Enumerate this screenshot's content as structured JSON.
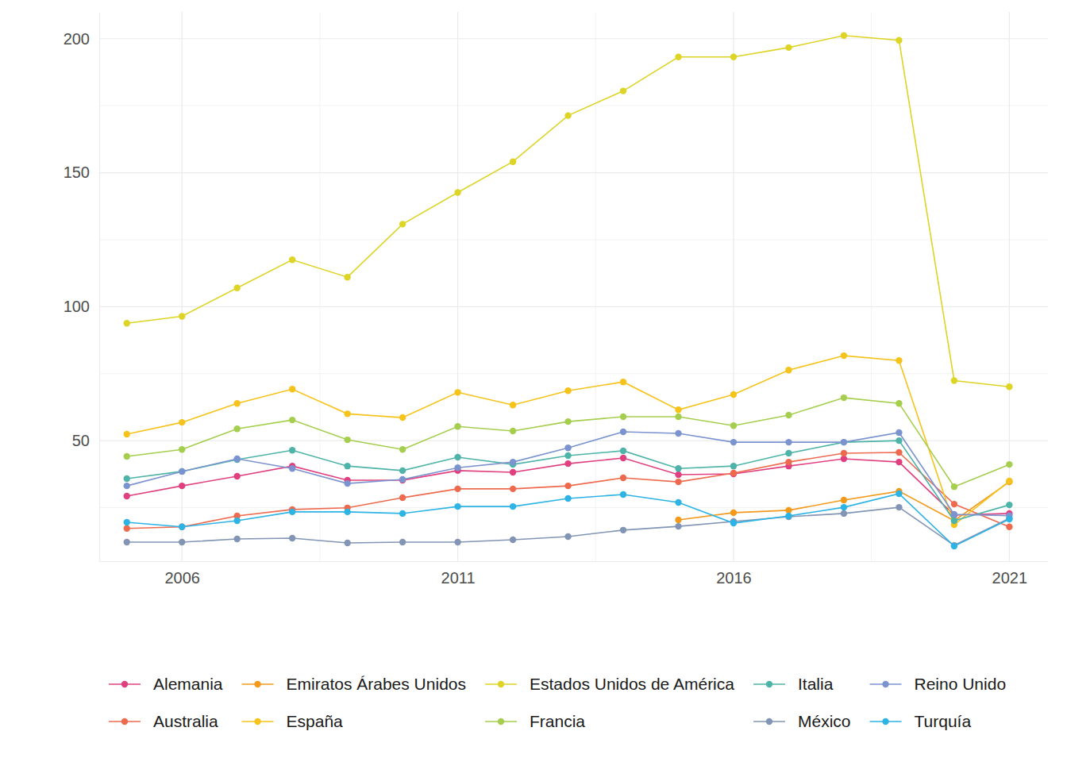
{
  "chart_data": {
    "type": "line",
    "x": [
      2005,
      2006,
      2007,
      2008,
      2009,
      2010,
      2011,
      2012,
      2013,
      2014,
      2015,
      2016,
      2017,
      2018,
      2019,
      2020,
      2021
    ],
    "xlim": [
      2004.5,
      2021.7
    ],
    "xticks": [
      2006,
      2011,
      2016,
      2021
    ],
    "ylim": [
      5,
      210
    ],
    "yticks": [
      50,
      100,
      150,
      200
    ],
    "grid": true,
    "legend": "bottom",
    "marker": "circle",
    "series": [
      {
        "name": "Alemania",
        "color": "#E0407F",
        "values": [
          29.3,
          33.1,
          36.7,
          40.5,
          35.2,
          35.2,
          38.8,
          38.2,
          41.4,
          43.5,
          37.3,
          37.6,
          40.5,
          43.2,
          42.0,
          22.2,
          22.8
        ]
      },
      {
        "name": "Australia",
        "color": "#EE6A4F",
        "values": [
          17.2,
          17.8,
          21.9,
          24.3,
          24.9,
          28.7,
          32.0,
          32.0,
          33.1,
          36.1,
          34.6,
          37.9,
          42.0,
          45.3,
          45.6,
          26.3,
          17.8
        ]
      },
      {
        "name": "Emiratos Árabes Unidos",
        "color": "#F39A1C",
        "values": [
          null,
          null,
          null,
          null,
          null,
          null,
          null,
          null,
          null,
          null,
          20.4,
          23.1,
          24.0,
          27.8,
          31.1,
          20.1,
          34.6
        ]
      },
      {
        "name": "España",
        "color": "#F6C31C",
        "values": [
          52.4,
          56.8,
          63.9,
          69.2,
          60.0,
          58.6,
          68.0,
          63.3,
          68.6,
          71.9,
          61.5,
          67.2,
          76.3,
          81.7,
          79.9,
          18.6,
          34.9
        ]
      },
      {
        "name": "Estados Unidos de América",
        "color": "#DDD425",
        "values": [
          93.8,
          96.4,
          107.0,
          117.5,
          111.0,
          130.8,
          142.6,
          154.1,
          171.3,
          180.5,
          193.2,
          193.2,
          196.7,
          201.2,
          199.4,
          72.4,
          70.1
        ]
      },
      {
        "name": "Francia",
        "color": "#A6CE4E",
        "values": [
          44.1,
          46.7,
          54.4,
          57.7,
          50.3,
          46.7,
          55.3,
          53.6,
          57.1,
          58.9,
          58.9,
          55.6,
          59.5,
          66.0,
          63.9,
          32.8,
          41.1
        ]
      },
      {
        "name": "Italia",
        "color": "#4EB3A8",
        "values": [
          35.8,
          38.5,
          42.9,
          46.4,
          40.5,
          38.8,
          43.8,
          41.1,
          44.4,
          46.2,
          39.6,
          40.5,
          45.3,
          49.4,
          50.0,
          20.1,
          26.0
        ]
      },
      {
        "name": "México",
        "color": "#8295B5",
        "values": [
          12.1,
          12.1,
          13.3,
          13.6,
          11.8,
          12.1,
          12.1,
          13.0,
          14.2,
          16.6,
          18.0,
          19.8,
          21.6,
          22.8,
          25.1,
          10.9,
          21.0
        ]
      },
      {
        "name": "Reino Unido",
        "color": "#7B93CE",
        "values": [
          33.1,
          38.5,
          43.2,
          39.6,
          34.0,
          35.5,
          39.9,
          42.0,
          47.3,
          53.3,
          52.7,
          49.4,
          49.4,
          49.4,
          53.0,
          22.5,
          22.0
        ]
      },
      {
        "name": "Turquía",
        "color": "#2DB3E4",
        "values": [
          19.5,
          17.8,
          20.1,
          23.4,
          23.4,
          22.8,
          25.4,
          25.4,
          28.4,
          29.9,
          26.9,
          19.2,
          21.9,
          25.1,
          30.2,
          10.6,
          20.7
        ]
      }
    ]
  }
}
